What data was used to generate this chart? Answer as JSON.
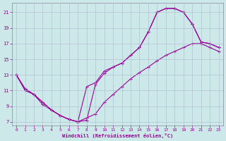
{
  "xlabel": "Windchill (Refroidissement éolien,°C)",
  "line_color": "#990099",
  "bg_color": "#cce8e8",
  "grid_color": "#aabbcc",
  "xlim": [
    -0.5,
    23.5
  ],
  "ylim": [
    6.5,
    22.2
  ],
  "xticks": [
    0,
    1,
    2,
    3,
    4,
    5,
    6,
    7,
    8,
    9,
    10,
    11,
    12,
    13,
    14,
    15,
    16,
    17,
    18,
    19,
    20,
    21,
    22,
    23
  ],
  "yticks": [
    7,
    9,
    11,
    13,
    15,
    17,
    19,
    21
  ],
  "curve1_x": [
    0,
    1,
    2,
    3,
    4,
    5,
    6,
    7,
    8,
    9,
    10,
    11,
    12,
    13,
    14,
    15,
    16,
    17,
    18,
    19,
    20,
    21,
    22,
    23
  ],
  "curve1_y": [
    13,
    11,
    10.5,
    9.2,
    8.5,
    7.8,
    7.3,
    7.0,
    11.5,
    12.0,
    13.5,
    14.0,
    14.5,
    15.5,
    16.5,
    18.5,
    21.0,
    21.5,
    21.5,
    21.0,
    19.5,
    17.2,
    17.0,
    16.5
  ],
  "curve2_x": [
    0,
    1,
    2,
    3,
    4,
    5,
    6,
    7,
    8,
    9,
    10,
    11,
    12,
    13,
    14,
    15,
    16,
    17,
    18,
    19,
    20,
    21,
    22,
    23
  ],
  "curve2_y": [
    13,
    11.2,
    10.5,
    9.5,
    8.5,
    7.8,
    7.3,
    7.0,
    7.2,
    11.8,
    13.2,
    14.0,
    14.5,
    15.5,
    16.5,
    18.5,
    21.0,
    21.5,
    21.5,
    21.0,
    19.5,
    17.2,
    17.0,
    16.5
  ],
  "curve3_x": [
    0,
    1,
    2,
    3,
    4,
    5,
    6,
    7,
    8,
    9,
    10,
    11,
    12,
    13,
    14,
    15,
    16,
    17,
    18,
    19,
    20,
    21,
    22,
    23
  ],
  "curve3_y": [
    13,
    11.2,
    10.5,
    9.5,
    8.5,
    7.8,
    7.3,
    7.0,
    7.5,
    8.0,
    9.5,
    10.5,
    11.5,
    12.5,
    13.3,
    14.0,
    14.8,
    15.5,
    16.0,
    16.5,
    17.0,
    17.0,
    16.5,
    16.0
  ]
}
